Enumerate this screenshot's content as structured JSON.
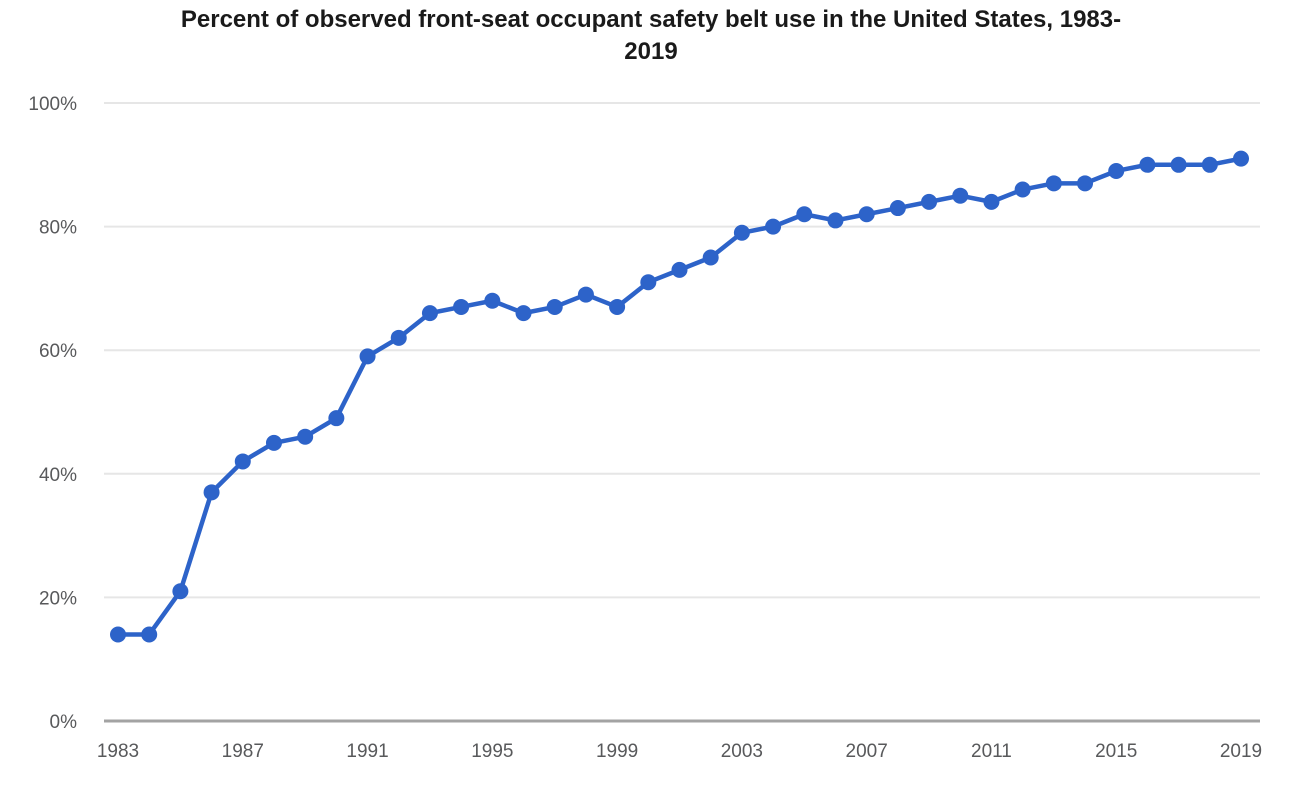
{
  "page": {
    "background_color": "#ffffff"
  },
  "title": {
    "full": "Percent of observed front-seat occupant safety belt use in the United States, 1983-2019",
    "lines": [
      "Percent of observed front-seat occupant safety belt use in the United States, 1983-",
      "2019"
    ]
  },
  "chart_data": {
    "type": "line",
    "title": "Percent of observed front-seat occupant safety belt use in the United States, 1983-2019",
    "x": [
      1983,
      1984,
      1985,
      1986,
      1987,
      1988,
      1989,
      1990,
      1991,
      1992,
      1993,
      1994,
      1995,
      1996,
      1997,
      1998,
      1999,
      2000,
      2001,
      2002,
      2003,
      2004,
      2005,
      2006,
      2007,
      2008,
      2009,
      2010,
      2011,
      2012,
      2013,
      2014,
      2015,
      2016,
      2017,
      2018,
      2019
    ],
    "values": [
      14,
      14,
      21,
      37,
      42,
      45,
      46,
      49,
      59,
      62,
      66,
      67,
      68,
      66,
      67,
      69,
      67,
      71,
      73,
      75,
      79,
      80,
      82,
      81,
      82,
      83,
      84,
      85,
      84,
      86,
      87,
      87,
      89,
      90,
      90,
      90,
      91
    ],
    "xlabel": "",
    "ylabel": "",
    "ylim": [
      0,
      100
    ],
    "yticks": [
      0,
      20,
      40,
      60,
      80,
      100
    ],
    "ytick_suffix": "%",
    "xticks": [
      1983,
      1987,
      1991,
      1995,
      1999,
      2003,
      2007,
      2011,
      2015,
      2019
    ],
    "grid": true,
    "legend": "none",
    "marker": "circle",
    "colors": {
      "line": "#2d63c9",
      "grid": "#e6e6e6",
      "axis": "#a3a3a3",
      "tick_label": "#58595b",
      "title": "#1a1a1a",
      "background": "#ffffff"
    }
  }
}
